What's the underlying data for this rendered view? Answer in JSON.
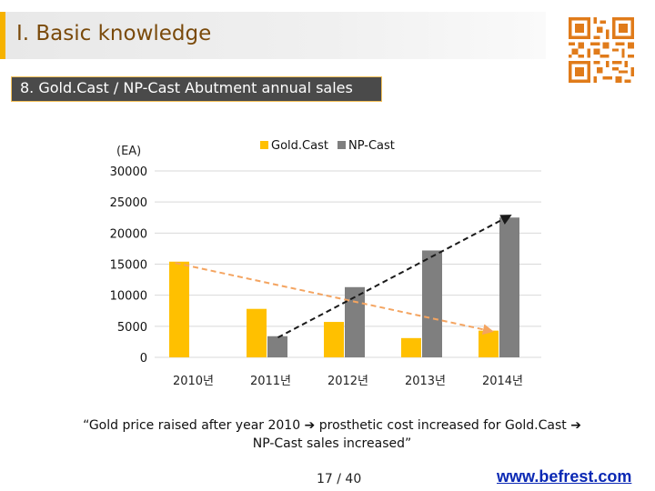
{
  "slide": {
    "section_title": "I. Basic knowledge",
    "subtitle": "8. Gold.Cast / NP-Cast Abutment annual sales",
    "caption_line1": "“Gold price raised after year 2010 ➔ prosthetic cost increased for Gold.Cast ➔",
    "caption_line2": "NP-Cast sales increased”",
    "page_number": "17 / 40",
    "website": "www.befrest.com"
  },
  "colors": {
    "accent": "#f6b200",
    "gold": "#ffc000",
    "np": "#7f7f7f",
    "title_text": "#7a4a0b",
    "subtitle_bg": "#4a4a4a",
    "gold_trend": "#f4a460",
    "np_trend": "#1a1a1a"
  },
  "icons": {
    "qr": "qr-code-icon"
  },
  "chart_data": {
    "type": "bar",
    "ylabel": "(EA)",
    "ylim": [
      0,
      30000
    ],
    "yticks": [
      "30000",
      "25000",
      "20000",
      "15000",
      "10000",
      "5000",
      "0"
    ],
    "categories": [
      "2010년",
      "2011년",
      "2012년",
      "2013년",
      "2014년"
    ],
    "series": [
      {
        "name": "Gold.Cast",
        "values": [
          15400,
          7800,
          5700,
          3100,
          4300
        ]
      },
      {
        "name": "NP-Cast",
        "values": [
          0,
          3400,
          11300,
          17200,
          22500
        ]
      }
    ],
    "trend_lines": [
      {
        "series": "Gold.Cast",
        "style": "dashed-arrow",
        "from": [
          0,
          15200
        ],
        "to": [
          4,
          4200
        ]
      },
      {
        "series": "NP-Cast",
        "style": "dashed-arrow",
        "from": [
          1,
          3200
        ],
        "to": [
          4,
          22800
        ]
      }
    ],
    "grid": true,
    "legend_position": "top"
  }
}
